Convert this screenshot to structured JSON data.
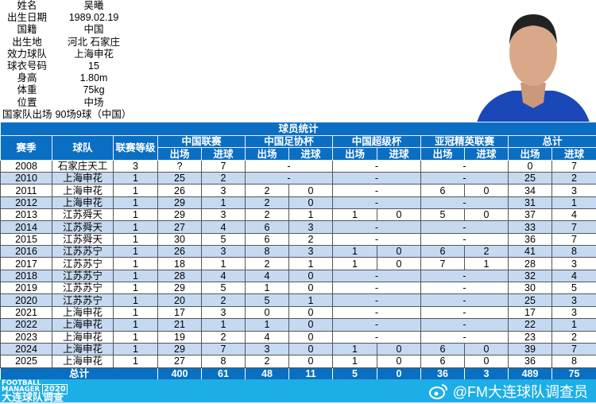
{
  "profile": {
    "items": [
      {
        "label": "姓名",
        "value": "吴曦"
      },
      {
        "label": "出生日期",
        "value": "1989.02.19"
      },
      {
        "label": "国籍",
        "value": "中国"
      },
      {
        "label": "出生地",
        "value": "河北  石家庄"
      },
      {
        "label": "效力球队",
        "value": "上海申花"
      },
      {
        "label": "球衣号码",
        "value": "15"
      },
      {
        "label": "身高",
        "value": "1.80m"
      },
      {
        "label": "体重",
        "value": "75kg"
      },
      {
        "label": "位置",
        "value": "中场"
      }
    ],
    "national": {
      "label": "国家队出场",
      "value": "90场9球（中国）"
    }
  },
  "table": {
    "title": "球员统计",
    "headers": {
      "season": "赛季",
      "team": "球队",
      "level": "联赛等级",
      "league": "中国联赛",
      "cup": "中国足协杯",
      "super": "中国超级杯",
      "acl": "亚冠精英联赛",
      "total": "总计",
      "apps": "出场",
      "goals": "进球"
    },
    "rows": [
      [
        "2008",
        "石家庄天工",
        "3",
        "?",
        "7",
        "-",
        "-",
        "-",
        "0",
        "7"
      ],
      [
        "2010",
        "上海申花",
        "1",
        "25",
        "2",
        "-",
        "-",
        "-",
        "25",
        "2"
      ],
      [
        "2011",
        "上海申花",
        "1",
        "26",
        "3",
        [
          "2",
          "0"
        ],
        "-",
        [
          "6",
          "0"
        ],
        "34",
        "3"
      ],
      [
        "2012",
        "上海申花",
        "1",
        "29",
        "1",
        [
          "2",
          "0"
        ],
        "-",
        "-",
        "31",
        "1"
      ],
      [
        "2013",
        "江苏舜天",
        "1",
        "29",
        "3",
        [
          "2",
          "1"
        ],
        [
          "1",
          "0"
        ],
        [
          "5",
          "0"
        ],
        "37",
        "4"
      ],
      [
        "2014",
        "江苏舜天",
        "1",
        "27",
        "4",
        [
          "6",
          "3"
        ],
        "-",
        "-",
        "33",
        "7"
      ],
      [
        "2015",
        "江苏舜天",
        "1",
        "30",
        "5",
        [
          "6",
          "2"
        ],
        "-",
        "-",
        "36",
        "7"
      ],
      [
        "2016",
        "江苏苏宁",
        "1",
        "26",
        "3",
        [
          "8",
          "3"
        ],
        [
          "1",
          "0"
        ],
        [
          "6",
          "2"
        ],
        "41",
        "8"
      ],
      [
        "2017",
        "江苏苏宁",
        "1",
        "18",
        "1",
        [
          "2",
          "1"
        ],
        [
          "1",
          "0"
        ],
        [
          "7",
          "1"
        ],
        "28",
        "3"
      ],
      [
        "2018",
        "江苏苏宁",
        "1",
        "28",
        "4",
        [
          "4",
          "0"
        ],
        "-",
        "-",
        "32",
        "4"
      ],
      [
        "2019",
        "江苏苏宁",
        "1",
        "29",
        "5",
        [
          "1",
          "0"
        ],
        "-",
        "-",
        "30",
        "5"
      ],
      [
        "2020",
        "江苏苏宁",
        "1",
        "20",
        "2",
        [
          "5",
          "1"
        ],
        "-",
        "-",
        "25",
        "3"
      ],
      [
        "2021",
        "上海申花",
        "1",
        "17",
        "3",
        [
          "0",
          "0"
        ],
        "-",
        "-",
        "17",
        "3"
      ],
      [
        "2022",
        "上海申花",
        "1",
        "21",
        "1",
        [
          "1",
          "0"
        ],
        "-",
        "-",
        "22",
        "1"
      ],
      [
        "2023",
        "上海申花",
        "1",
        "19",
        "2",
        [
          "4",
          "0"
        ],
        "-",
        "-",
        "23",
        "2"
      ],
      [
        "2024",
        "上海申花",
        "1",
        "29",
        "7",
        [
          "3",
          "0"
        ],
        [
          "1",
          "0"
        ],
        [
          "6",
          "0"
        ],
        "39",
        "7"
      ],
      [
        "2025",
        "上海申花",
        "1",
        "27",
        "8",
        [
          "2",
          "0"
        ],
        [
          "1",
          "0"
        ],
        [
          "6",
          "0"
        ],
        "36",
        "8"
      ]
    ],
    "total": {
      "label": "总计",
      "values": [
        "400",
        "61",
        "48",
        "11",
        "5",
        "0",
        "36",
        "3",
        "489",
        "75"
      ]
    }
  },
  "footer": {
    "logo_text": "FOOTBALL MANAGER 2020 大连球队调查",
    "weibo_handle": "@FM大连球队调查员",
    "icon": "weibo-icon"
  },
  "colors": {
    "header": "#0a6fc2",
    "alt_row": "#c5d9f1",
    "band": "#1eaee6"
  }
}
